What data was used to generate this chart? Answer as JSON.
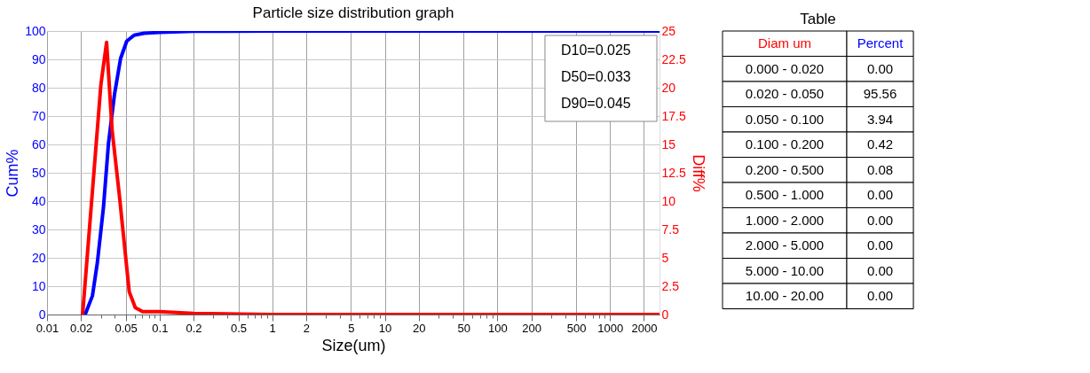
{
  "chart_data": [
    {
      "type": "line",
      "title": "Particle size distribution graph",
      "xlabel": "Size(um)",
      "ylabel": "Cum%",
      "y2label": "Diff%",
      "log": "x",
      "grid": true,
      "marker": "none",
      "line_style": "solid",
      "xlim": [
        0.01,
        2750
      ],
      "xticks": [
        0.01,
        0.02,
        {
          "value": 0.03,
          "label": null
        },
        {
          "value": 0.04,
          "label": null
        },
        0.05,
        {
          "value": 0.06,
          "label": null
        },
        {
          "value": 0.07,
          "label": null
        },
        {
          "value": 0.08,
          "label": null
        },
        {
          "value": 0.09,
          "label": null
        },
        0.1,
        0.2,
        {
          "value": 0.3,
          "label": null
        },
        {
          "value": 0.4,
          "label": null
        },
        0.5,
        {
          "value": 0.6,
          "label": null
        },
        {
          "value": 0.7,
          "label": null
        },
        {
          "value": 0.8,
          "label": null
        },
        {
          "value": 0.9,
          "label": null
        },
        1,
        2,
        {
          "value": 3,
          "label": null
        },
        {
          "value": 4,
          "label": null
        },
        5,
        {
          "value": 6,
          "label": null
        },
        {
          "value": 7,
          "label": null
        },
        {
          "value": 8,
          "label": null
        },
        {
          "value": 9,
          "label": null
        },
        10,
        20,
        {
          "value": 30,
          "label": null
        },
        {
          "value": 40,
          "label": null
        },
        50,
        {
          "value": 60,
          "label": null
        },
        {
          "value": 70,
          "label": null
        },
        {
          "value": 80,
          "label": null
        },
        {
          "value": 90,
          "label": null
        },
        100,
        200,
        {
          "value": 300,
          "label": null
        },
        {
          "value": 400,
          "label": null
        },
        500,
        {
          "value": 600,
          "label": null
        },
        {
          "value": 700,
          "label": null
        },
        {
          "value": 800,
          "label": null
        },
        {
          "value": 900,
          "label": null
        },
        1000,
        2000
      ],
      "ylim": [
        0,
        100
      ],
      "yticks": [
        0,
        10,
        20,
        30,
        40,
        50,
        60,
        70,
        80,
        90,
        100
      ],
      "y2lim": [
        0,
        25
      ],
      "y2ticks": [
        0,
        2.5,
        5,
        7.5,
        10,
        12.5,
        15,
        17.5,
        20,
        22.5,
        25
      ],
      "annotations": [
        "D10=0.025",
        "D50=0.033",
        "D90=0.045"
      ],
      "series": [
        {
          "color": "#0000ff",
          "x": [
            0.02,
            0.0218,
            0.0253,
            0.028,
            0.0317,
            0.0351,
            0.0397,
            0.045,
            0.051,
            0.0593,
            0.0726,
            0.1,
            0.2,
            1,
            2750
          ],
          "values": [
            0,
            0,
            6.6,
            18.4,
            37.8,
            60.2,
            77.6,
            90.3,
            96.4,
            98.5,
            99.2,
            99.5,
            99.9,
            100,
            100
          ]
        },
        {
          "color": "#ff0000",
          "axis": "y2",
          "x": [
            0.0207,
            0.0301,
            0.0338,
            0.0378,
            0.0439,
            0.0537,
            0.0608,
            0.0707,
            0.1,
            0.2,
            1,
            2750
          ],
          "values": [
            0,
            20.3,
            24.0,
            16.3,
            10.5,
            2.0,
            0.6,
            0.25,
            0.25,
            0.1,
            0,
            0
          ]
        }
      ]
    },
    {
      "type": "other",
      "title": "Table",
      "annotations": [
        "Diam um",
        "Percent"
      ],
      "categories": [
        "0.000 - 0.020",
        "0.020 - 0.050",
        "0.050 - 0.100",
        "0.100 - 0.200",
        "0.200 - 0.500",
        "0.500 - 1.000",
        "1.000 - 2.000",
        "2.000 - 5.000",
        "5.000 - 10.00",
        "10.00 - 20.00"
      ],
      "value_labels": [
        "0.00",
        "95.56",
        "3.94",
        "0.42",
        "0.08",
        "0.00",
        "0.00",
        "0.00",
        "0.00",
        "0.00"
      ]
    }
  ]
}
